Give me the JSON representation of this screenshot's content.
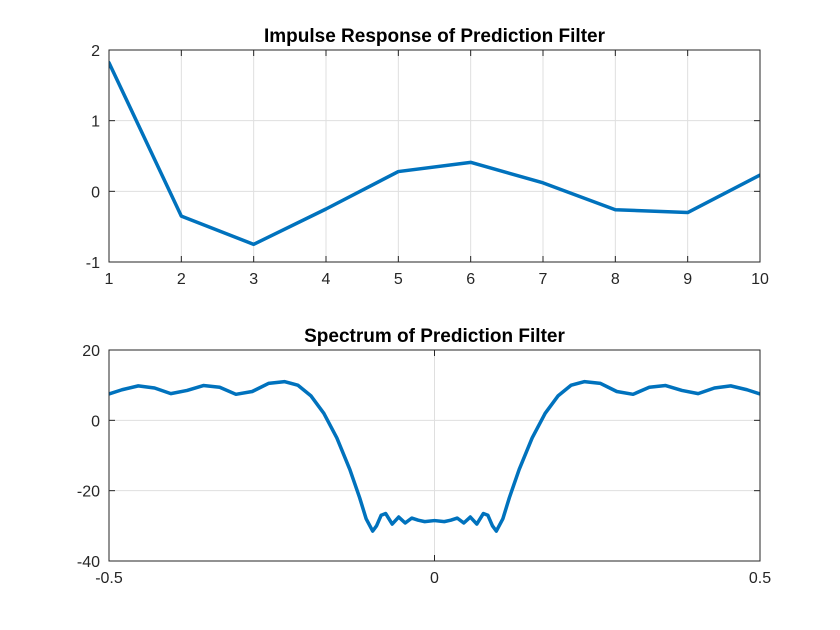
{
  "chart_data": [
    {
      "type": "line",
      "title": "Impulse Response of Prediction Filter",
      "xlabel": "",
      "ylabel": "",
      "xlim": [
        1,
        10
      ],
      "ylim": [
        -1,
        2
      ],
      "xticks": [
        1,
        2,
        3,
        4,
        5,
        6,
        7,
        8,
        9,
        10
      ],
      "yticks": [
        -1,
        0,
        1,
        2
      ],
      "grid": true,
      "color": "#0072BD",
      "x": [
        1,
        2,
        3,
        4,
        5,
        6,
        7,
        8,
        9,
        10
      ],
      "y": [
        1.82,
        -0.35,
        -0.75,
        -0.25,
        0.28,
        0.41,
        0.12,
        -0.26,
        -0.3,
        0.23
      ]
    },
    {
      "type": "line",
      "title": "Spectrum of Prediction Filter",
      "xlabel": "",
      "ylabel": "",
      "xlim": [
        -0.5,
        0.5
      ],
      "ylim": [
        -40,
        20
      ],
      "xticks": [
        -0.5,
        0,
        0.5
      ],
      "yticks": [
        -40,
        -20,
        0,
        20
      ],
      "grid": true,
      "color": "#0072BD",
      "x": [
        -0.5,
        -0.48,
        -0.455,
        -0.43,
        -0.405,
        -0.38,
        -0.355,
        -0.33,
        -0.305,
        -0.28,
        -0.255,
        -0.23,
        -0.21,
        -0.19,
        -0.17,
        -0.15,
        -0.13,
        -0.115,
        -0.105,
        -0.095,
        -0.089,
        -0.082,
        -0.075,
        -0.065,
        -0.055,
        -0.045,
        -0.035,
        -0.025,
        -0.015,
        0,
        0.015,
        0.025,
        0.035,
        0.045,
        0.055,
        0.065,
        0.075,
        0.082,
        0.089,
        0.095,
        0.105,
        0.115,
        0.13,
        0.15,
        0.17,
        0.19,
        0.21,
        0.23,
        0.255,
        0.28,
        0.305,
        0.33,
        0.355,
        0.38,
        0.405,
        0.43,
        0.455,
        0.48,
        0.5
      ],
      "y": [
        7.5,
        8.7,
        9.8,
        9.2,
        7.6,
        8.5,
        9.9,
        9.4,
        7.4,
        8.2,
        10.5,
        11,
        10,
        7,
        2,
        -5,
        -14,
        -22,
        -28,
        -31.5,
        -30,
        -27,
        -26.5,
        -29.5,
        -27.5,
        -29.2,
        -27.8,
        -28.4,
        -28.8,
        -28.5,
        -28.8,
        -28.4,
        -27.8,
        -29.2,
        -27.5,
        -29.5,
        -26.5,
        -27,
        -30,
        -31.5,
        -28,
        -22,
        -14,
        -5,
        2,
        7,
        10,
        11,
        10.5,
        8.2,
        7.4,
        9.4,
        9.9,
        8.5,
        7.6,
        9.2,
        9.8,
        8.7,
        7.5
      ]
    }
  ]
}
